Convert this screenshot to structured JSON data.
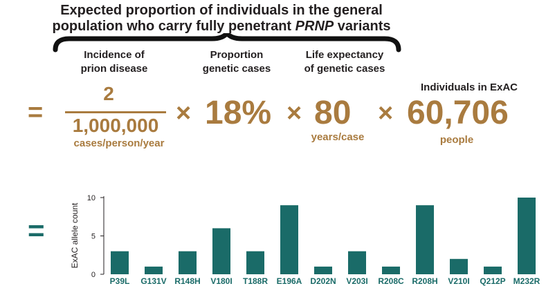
{
  "equation": {
    "title_line1": "Expected proportion of individuals in the general",
    "title_line2_pre": "population who carry fully penetrant ",
    "title_line2_italic": "PRNP",
    "title_line2_post": " variants",
    "term1": {
      "label_line1": "Incidence of",
      "label_line2": "prion disease",
      "numerator": "2",
      "denominator": "1,000,000",
      "unit": "cases/person/year"
    },
    "term2": {
      "label_line1": "Proportion",
      "label_line2": "genetic cases",
      "value": "18%"
    },
    "term3": {
      "label_line1": "Life expectancy",
      "label_line2": "of genetic cases",
      "value": "80",
      "unit": "years/case"
    },
    "term4": {
      "label": "Individuals in ExAC",
      "value": "60,706",
      "unit": "people"
    },
    "equals_sign": "=",
    "times_sign": "×"
  },
  "colors": {
    "brown": "#a97b3f",
    "teal": "#1a6b68",
    "text": "#231f20"
  },
  "chart_data": {
    "type": "bar",
    "ylabel": "ExAC allele count",
    "yticks": [
      "0",
      "5",
      "10"
    ],
    "ylim": [
      0,
      10
    ],
    "categories": [
      "P39L",
      "G131V",
      "R148H",
      "V180I",
      "T188R",
      "E196A",
      "D202N",
      "V203I",
      "R208C",
      "R208H",
      "V210I",
      "Q212P",
      "M232R"
    ],
    "values": [
      3,
      1,
      3,
      6,
      3,
      9,
      1,
      3,
      1,
      9,
      2,
      1,
      10
    ],
    "grid": false
  }
}
